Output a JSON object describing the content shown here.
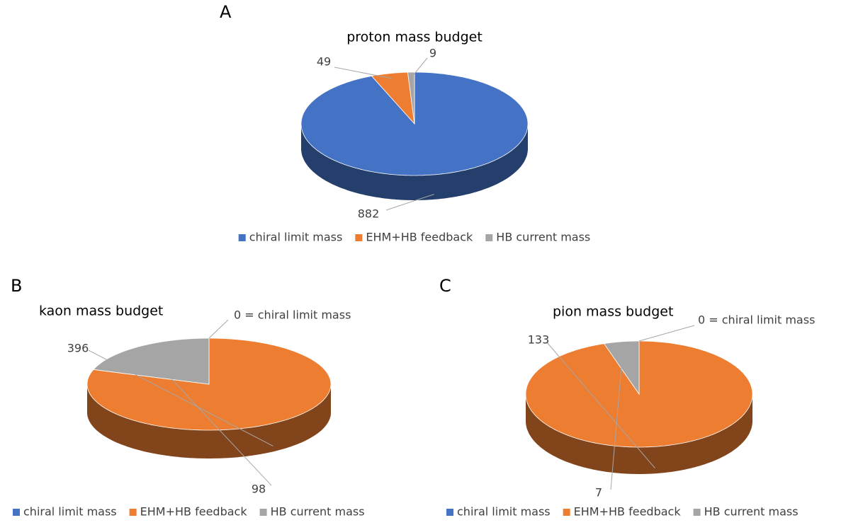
{
  "chart_data": [
    {
      "type": "pie",
      "panel_label": "A",
      "title": "proton mass budget",
      "categories": [
        "chiral limit mass",
        "EHM+HB feedback",
        "HB current mass"
      ],
      "values": [
        882,
        49,
        9
      ],
      "colors": [
        "#4472c4",
        "#ed7d31",
        "#a5a5a5"
      ]
    },
    {
      "type": "pie",
      "panel_label": "B",
      "title": "kaon mass budget",
      "categories": [
        "chiral limit mass",
        "EHM+HB feedback",
        "HB current mass"
      ],
      "values": [
        0,
        396,
        98
      ],
      "value_labels": [
        "0 = chiral limit mass",
        "396",
        "98"
      ],
      "colors": [
        "#4472c4",
        "#ed7d31",
        "#a5a5a5"
      ]
    },
    {
      "type": "pie",
      "panel_label": "C",
      "title": "pion mass budget",
      "categories": [
        "chiral limit mass",
        "EHM+HB feedback",
        "HB current mass"
      ],
      "values": [
        0,
        133,
        7
      ],
      "value_labels": [
        "0 = chiral limit mass",
        "133",
        "7"
      ],
      "colors": [
        "#4472c4",
        "#ed7d31",
        "#a5a5a5"
      ]
    }
  ]
}
